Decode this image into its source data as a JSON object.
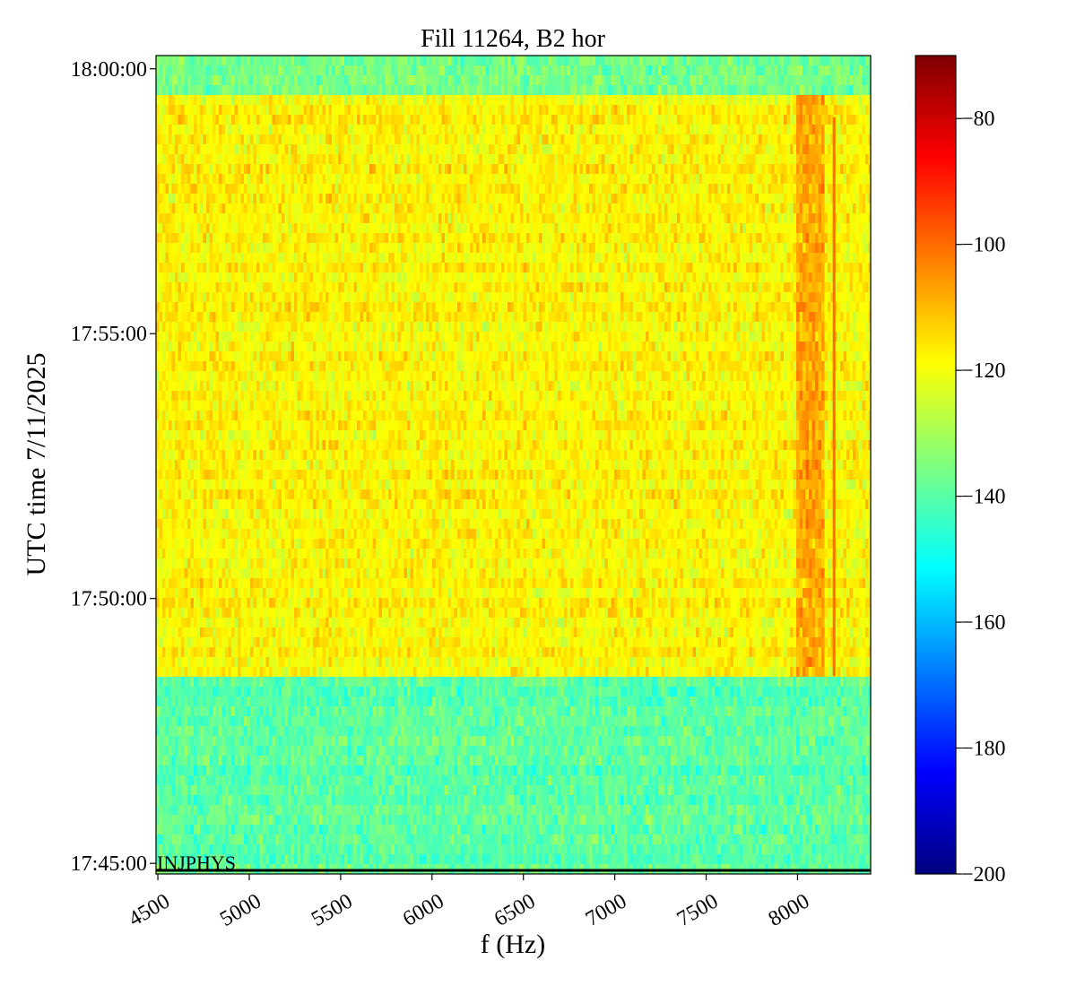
{
  "chart_data": {
    "type": "heatmap",
    "title": "Fill 11264, B2 hor",
    "xlabel": "f (Hz)",
    "ylabel": "UTC time 7/11/2025",
    "xlim": [
      4490,
      8400
    ],
    "x_ticks": [
      4500,
      5000,
      5500,
      6000,
      6500,
      7000,
      7500,
      8000
    ],
    "x_tick_labels": [
      "4500",
      "5000",
      "5500",
      "6000",
      "6500",
      "7000",
      "7500",
      "8000"
    ],
    "y_range_minutes": [
      "17:44:48",
      "18:00:15"
    ],
    "y_ticks": [
      "17:45:00",
      "17:50:00",
      "17:55:00",
      "18:00:00"
    ],
    "colorbar": {
      "colormap": "jet",
      "range": [
        -200,
        -70
      ],
      "ticks": [
        -80,
        -100,
        -120,
        -140,
        -160,
        -180,
        -200
      ],
      "tick_labels": [
        "−80",
        "−100",
        "−120",
        "−140",
        "−160",
        "−180",
        "−200"
      ]
    },
    "regions": [
      {
        "t_start": "17:44:48",
        "t_end": "17:48:32",
        "level_db": -140
      },
      {
        "t_start": "17:48:32",
        "t_end": "17:59:35",
        "level_db": -118
      },
      {
        "t_start": "17:59:35",
        "t_end": "18:00:15",
        "level_db": -137
      }
    ],
    "features": [
      {
        "f_start": 8000,
        "f_end": 8150,
        "t_start": "17:48:32",
        "t_end": "17:59:35",
        "level_db": -108
      },
      {
        "f": 8200,
        "t_start": "17:48:32",
        "t_end": "17:59:05",
        "level_db": -100
      }
    ],
    "annotations": [
      {
        "text": "INJPHYS",
        "time": "17:44:48",
        "f": 4500
      }
    ],
    "grid": false
  },
  "colors": {
    "jet": [
      "#00007f",
      "#0000ff",
      "#007fff",
      "#00ffff",
      "#7fff7f",
      "#ffff00",
      "#ff7f00",
      "#ff0000",
      "#7f0000"
    ]
  }
}
